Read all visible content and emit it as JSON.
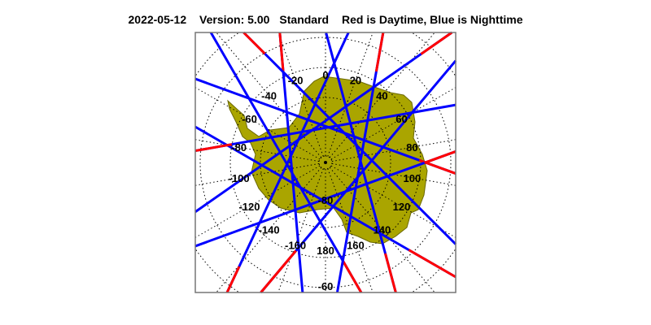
{
  "header": {
    "date": "2022-05-12",
    "version": "Version: 5.00",
    "product": "Standard",
    "legend": "Red is Daytime, Blue is Nighttime"
  },
  "map": {
    "projection": "south-polar-stereographic",
    "land_color": "#aaa500",
    "day_color": "#ff0000",
    "night_color": "#0000ff",
    "latitude_label": "-60",
    "longitude_labels": [
      "0",
      "20",
      "40",
      "60",
      "80",
      "100",
      "120",
      "140",
      "160",
      "180",
      "-160",
      "-140",
      "-120",
      "-100",
      "-80",
      "-60",
      "-40",
      "-20"
    ],
    "pole_latitude_label": "-80",
    "tracks": [
      {
        "tangent_lon": -150,
        "day_start": 0.0,
        "day_end": 0.18
      },
      {
        "tangent_lon": -120,
        "day_start": 0.0,
        "day_end": 0.12
      },
      {
        "tangent_lon": -95,
        "day_start": 0.85,
        "day_end": 1.0
      },
      {
        "tangent_lon": -65,
        "day_start": 0.0,
        "day_end": 0.1
      },
      {
        "tangent_lon": -35,
        "day_start": 0.88,
        "day_end": 1.0
      },
      {
        "tangent_lon": -10,
        "day_start": 0.0,
        "day_end": 0.14
      },
      {
        "tangent_lon": 20,
        "day_start": 0.86,
        "day_end": 1.0
      },
      {
        "tangent_lon": 45,
        "day_start": 0.0,
        "day_end": 0.1
      },
      {
        "tangent_lon": 75,
        "day_start": 0.85,
        "day_end": 1.0
      },
      {
        "tangent_lon": 100,
        "day_start": 0.0,
        "day_end": 0.15
      },
      {
        "tangent_lon": 130,
        "day_start": 0.82,
        "day_end": 1.0
      },
      {
        "tangent_lon": 160,
        "day_start": 0.0,
        "day_end": 0.12
      }
    ]
  }
}
